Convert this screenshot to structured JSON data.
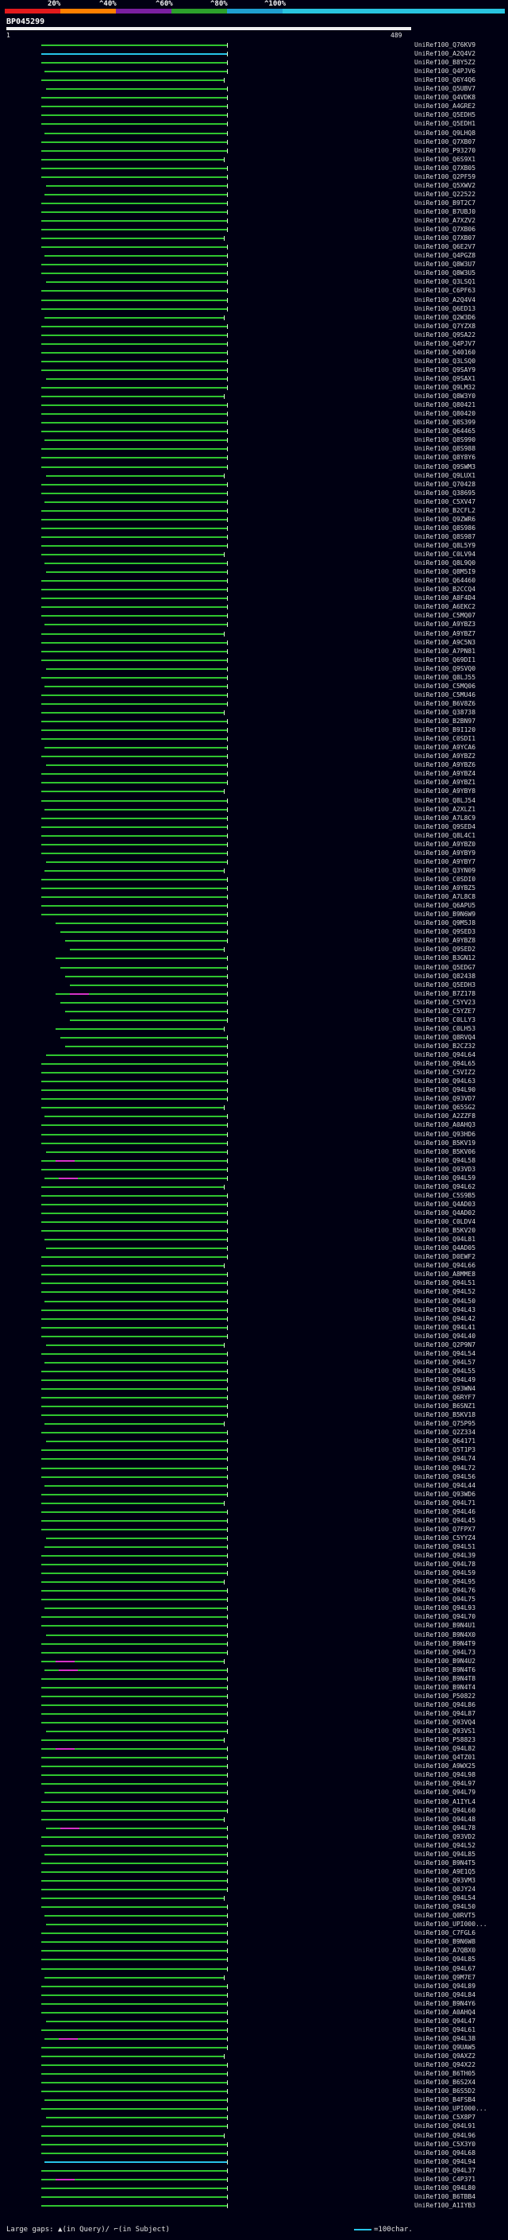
{
  "scale": {
    "labels": [
      "20%",
      "^40%",
      "^60%",
      "^80%",
      "^100%"
    ],
    "colors": [
      "#e31a1c",
      "#ff7f00",
      "#7a1fa2",
      "#2ca02c",
      "#1f9fd0",
      "#29c4df"
    ]
  },
  "query": {
    "id": "BP045299",
    "start": "1",
    "end": "489"
  },
  "hits": [
    "UniRef100_Q76KV9",
    "UniRef100_A2Q4V2",
    "UniRef100_B8Y5Z2",
    "UniRef100_Q4PJV6",
    "UniRef100_Q6Y4Q6",
    "UniRef100_Q5UBV7",
    "UniRef100_Q4VDK8",
    "UniRef100_A4GRE2",
    "UniRef100_Q5EDH5",
    "UniRef100_Q5EDH1",
    "UniRef100_Q9LHQ8",
    "UniRef100_Q7XB07",
    "UniRef100_P93270",
    "UniRef100_Q6S9X1",
    "UniRef100_Q7XB05",
    "UniRef100_Q2PF59",
    "UniRef100_Q5XWV2",
    "UniRef100_Q22522",
    "UniRef100_B9T2C7",
    "UniRef100_B7UBJ0",
    "UniRef100_A7XZV2",
    "UniRef100_Q7XB06",
    "UniRef100_Q7XB07",
    "UniRef100_Q6E2V7",
    "UniRef100_Q4PGZ8",
    "UniRef100_Q8W3U7",
    "UniRef100_Q8W3U5",
    "UniRef100_Q3LSQ1",
    "UniRef100_C6PF63",
    "UniRef100_A2Q4V4",
    "UniRef100_Q6ED13",
    "UniRef100_Q2W3D6",
    "UniRef100_Q7YZX8",
    "UniRef100_Q9SA22",
    "UniRef100_Q4PJV7",
    "UniRef100_Q40160",
    "UniRef100_Q3LSQ0",
    "UniRef100_Q9SAY9",
    "UniRef100_Q9SAX1",
    "UniRef100_Q9LM32",
    "UniRef100_Q8W3Y0",
    "UniRef100_Q80421",
    "UniRef100_Q80420",
    "UniRef100_Q8S399",
    "UniRef100_Q64465",
    "UniRef100_Q8S990",
    "UniRef100_Q8S988",
    "UniRef100_Q8Y8Y6",
    "UniRef100_Q9SWM3",
    "UniRef100_Q9LUX1",
    "UniRef100_Q70428",
    "UniRef100_Q38695",
    "UniRef100_C5XV47",
    "UniRef100_B2CFL2",
    "UniRef100_Q9ZWR6",
    "UniRef100_Q8S986",
    "UniRef100_Q8S987",
    "UniRef100_Q8L5Y9",
    "UniRef100_C0LV94",
    "UniRef100_Q8L9Q0",
    "UniRef100_Q8M5I9",
    "UniRef100_Q64460",
    "UniRef100_B2CCQ4",
    "UniRef100_A8F4D4",
    "UniRef100_A6EKC2",
    "UniRef100_C5MQ07",
    "UniRef100_A9YBZ3",
    "UniRef100_A9YBZ7",
    "UniRef100_A9C5N3",
    "UniRef100_A7PN81",
    "UniRef100_Q69DI1",
    "UniRef100_Q9SVQ0",
    "UniRef100_Q8LJ55",
    "UniRef100_C5MQ06",
    "UniRef100_C5MU46",
    "UniRef100_B6V8Z6",
    "UniRef100_Q38738",
    "UniRef100_B2BN97",
    "UniRef100_B9I120",
    "UniRef100_C0SDI1",
    "UniRef100_A9YCA6",
    "UniRef100_A9YBZ2",
    "UniRef100_A9YBZ6",
    "UniRef100_A9YBZ4",
    "UniRef100_A9YBZ1",
    "UniRef100_A9YBY8",
    "UniRef100_Q8LJ54",
    "UniRef100_A2XLZ1",
    "UniRef100_A7L8C9",
    "UniRef100_Q9SED4",
    "UniRef100_Q8L4C1",
    "UniRef100_A9YBZ0",
    "UniRef100_A9YBY9",
    "UniRef100_A9YBY7",
    "UniRef100_Q3YN09",
    "UniRef100_C0SDI0",
    "UniRef100_A9YBZ5",
    "UniRef100_A7L8C8",
    "UniRef100_Q6APU5",
    "UniRef100_B9N6W9",
    "UniRef100_Q9M5J8",
    "UniRef100_Q9SED3",
    "UniRef100_A9YBZ8",
    "UniRef100_Q9SED2",
    "UniRef100_B3GN12",
    "UniRef100_Q5EDG7",
    "UniRef100_Q82438",
    "UniRef100_Q5EDH3",
    "UniRef100_B7Z178",
    "UniRef100_C5YV23",
    "UniRef100_C5YZE7",
    "UniRef100_C0LLY3",
    "UniRef100_C0LH53",
    "UniRef100_Q8RVQ4",
    "UniRef100_B2CZ32",
    "UniRef100_Q94L64",
    "UniRef100_Q94L65",
    "UniRef100_C5VIZ2",
    "UniRef100_Q94L63",
    "UniRef100_Q94L90",
    "UniRef100_Q93VD7",
    "UniRef100_Q65SG2",
    "UniRef100_A2ZZF8",
    "UniRef100_A0AHQ3",
    "UniRef100_Q93HD6",
    "UniRef100_B5KV19",
    "UniRef100_B5KV06",
    "UniRef100_Q94L58",
    "UniRef100_Q93VD3",
    "UniRef100_Q94L59",
    "UniRef100_Q94L62",
    "UniRef100_C5S9B5",
    "UniRef100_Q4AD03",
    "UniRef100_Q4AD02",
    "UniRef100_C0LDV4",
    "UniRef100_B5KV20",
    "UniRef100_Q94L81",
    "UniRef100_Q4AD05",
    "UniRef100_D0EWF2",
    "UniRef100_Q94L66",
    "UniRef100_A8MME8",
    "UniRef100_Q94L51",
    "UniRef100_Q94L52",
    "UniRef100_Q94L50",
    "UniRef100_Q94L43",
    "UniRef100_Q94L42",
    "UniRef100_Q94L41",
    "UniRef100_Q94L40",
    "UniRef100_Q2P9N7",
    "UniRef100_Q94L54",
    "UniRef100_Q94L57",
    "UniRef100_Q94L55",
    "UniRef100_Q94L49",
    "UniRef100_Q93WN4",
    "UniRef100_Q6RYF7",
    "UniRef100_B6SNZ1",
    "UniRef100_B5KV18",
    "UniRef100_Q75P95",
    "UniRef100_Q2Z334",
    "UniRef100_Q64171",
    "UniRef100_Q5T1P3",
    "UniRef100_Q94L74",
    "UniRef100_Q94L72",
    "UniRef100_Q94L56",
    "UniRef100_Q94L44",
    "UniRef100_Q93WD6",
    "UniRef100_Q94L71",
    "UniRef100_Q94L46",
    "UniRef100_Q94L45",
    "UniRef100_Q7FPX7",
    "UniRef100_C5YYZ4",
    "UniRef100_Q94L51",
    "UniRef100_Q94L39",
    "UniRef100_Q94L78",
    "UniRef100_Q94L59",
    "UniRef100_Q94L95",
    "UniRef100_Q94L76",
    "UniRef100_Q94L75",
    "UniRef100_Q94L93",
    "UniRef100_Q94L70",
    "UniRef100_B9N4U1",
    "UniRef100_B9N4X0",
    "UniRef100_B9N4T9",
    "UniRef100_Q94L73",
    "UniRef100_B9N4U2",
    "UniRef100_B9N4T6",
    "UniRef100_B9N4T8",
    "UniRef100_B9N4T4",
    "UniRef100_P50822",
    "UniRef100_Q94L86",
    "UniRef100_Q94L87",
    "UniRef100_Q93VQ4",
    "UniRef100_Q93VS1",
    "UniRef100_P58823",
    "UniRef100_Q94L82",
    "UniRef100_Q4TZ01",
    "UniRef100_A9WX25",
    "UniRef100_Q94L98",
    "UniRef100_Q94L97",
    "UniRef100_Q94L79",
    "UniRef100_A1IYL4",
    "UniRef100_Q94L60",
    "UniRef100_Q94L48",
    "UniRef100_Q94L78",
    "UniRef100_Q93VD2",
    "UniRef100_Q94L52",
    "UniRef100_Q94L85",
    "UniRef100_B9N4T5",
    "UniRef100_A9E1Q5",
    "UniRef100_Q93VM3",
    "UniRef100_Q0JY24",
    "UniRef100_Q94L54",
    "UniRef100_Q94L50",
    "UniRef100_Q0RVT5",
    "UniRef100_UPI000...",
    "UniRef100_C7FGL6",
    "UniRef100_B9N6W8",
    "UniRef100_A7QBX0",
    "UniRef100_Q94L85",
    "UniRef100_Q94L67",
    "UniRef100_Q9M7E7",
    "UniRef100_Q94L89",
    "UniRef100_Q94L84",
    "UniRef100_B9N4Y6",
    "UniRef100_A0AHQ4",
    "UniRef100_Q94L47",
    "UniRef100_Q94L61",
    "UniRef100_Q94L38",
    "UniRef100_Q9UAW5",
    "UniRef100_Q9AXZ2",
    "UniRef100_Q94X22",
    "UniRef100_B6TH05",
    "UniRef100_B6S2X4",
    "UniRef100_B6S5D2",
    "UniRef100_B4FSB4",
    "UniRef100_UPI000...",
    "UniRef100_C5X8P7",
    "UniRef100_Q94L91",
    "UniRef100_Q94L96",
    "UniRef100_C5X3Y0",
    "UniRef100_Q94L68",
    "UniRef100_Q94L94",
    "UniRef100_Q94L37",
    "UniRef100_C4P371",
    "UniRef100_Q94L80",
    "UniRef100_B6TBB4",
    "UniRef100_A1IYB3"
  ],
  "footer": {
    "large_gaps_label": "Large gaps:",
    "legend_query": "(in Query)/",
    "legend_subject": "(in Subject)",
    "legend_scale": "=100char."
  }
}
